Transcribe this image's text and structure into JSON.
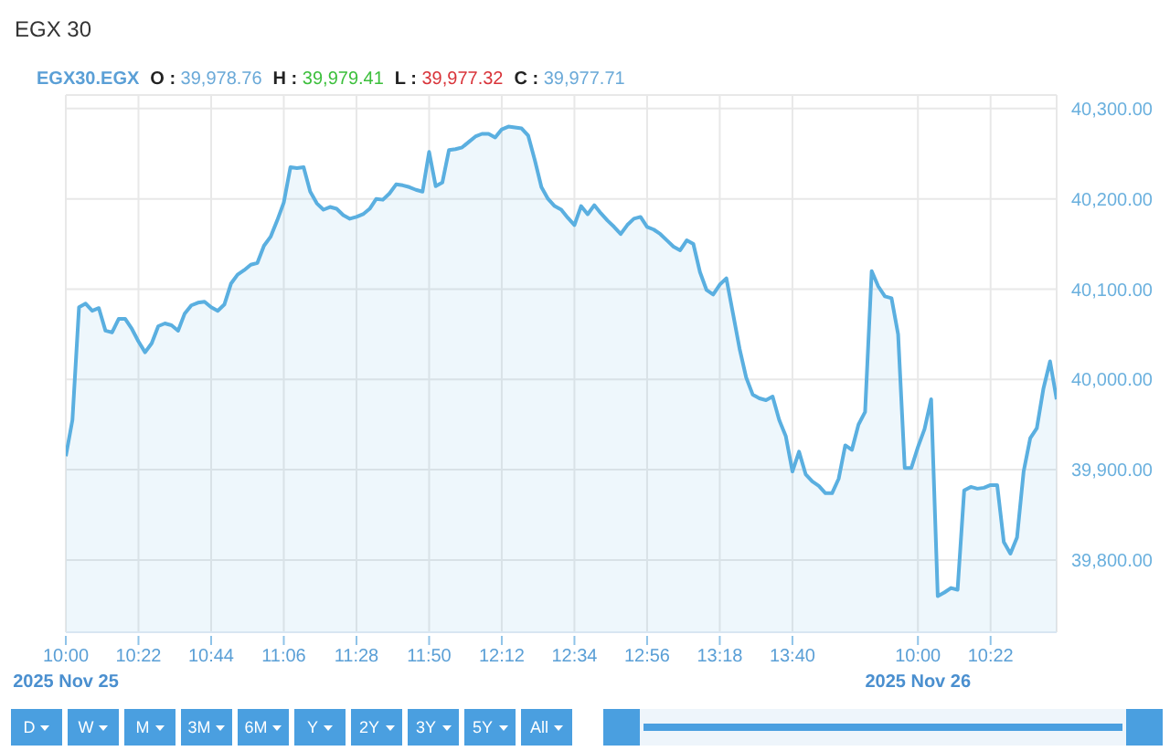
{
  "chart_data": {
    "type": "area",
    "title": "EGX 30",
    "subtitle": "EGX30.EGX",
    "annotations": [
      "O : 39,978.76",
      "H : 39,979.41",
      "L : 39,977.32",
      "C : 39,977.71",
      "D",
      "W",
      "M",
      "3M",
      "6M",
      "Y",
      "2Y",
      "3Y",
      "5Y",
      "All"
    ],
    "categories": [
      "10:00\n2025 Nov 25",
      null,
      null,
      null,
      null,
      null,
      null,
      null,
      null,
      null,
      null,
      "10:22",
      null,
      null,
      null,
      null,
      null,
      null,
      null,
      null,
      null,
      null,
      "10:44",
      null,
      null,
      null,
      null,
      null,
      null,
      null,
      null,
      null,
      null,
      "11:06",
      null,
      null,
      null,
      null,
      null,
      null,
      null,
      null,
      null,
      null,
      "11:28",
      null,
      null,
      null,
      null,
      null,
      null,
      null,
      null,
      null,
      null,
      "11:50",
      null,
      null,
      null,
      null,
      null,
      null,
      null,
      null,
      null,
      null,
      "12:12",
      null,
      null,
      null,
      null,
      null,
      null,
      null,
      null,
      null,
      null,
      "12:34",
      null,
      null,
      null,
      null,
      null,
      null,
      null,
      null,
      null,
      null,
      "12:56",
      null,
      null,
      null,
      null,
      null,
      null,
      null,
      null,
      null,
      null,
      "13:18",
      null,
      null,
      null,
      null,
      null,
      null,
      null,
      null,
      null,
      null,
      "13:40",
      null,
      null,
      null,
      null,
      null,
      null,
      null,
      null,
      null,
      null,
      null,
      null,
      null,
      null,
      null,
      null,
      null,
      null,
      "10:00\n2025 Nov 26",
      null,
      null,
      null,
      null,
      null,
      null,
      null,
      null,
      null,
      null,
      "10:22",
      null,
      null,
      null,
      null,
      null,
      null,
      null,
      null,
      null,
      null
    ],
    "series": [
      {
        "color": "#5aafe0",
        "values": [
          39915,
          39955,
          40080,
          40084,
          40076,
          40079,
          40054,
          40052,
          40067,
          40067,
          40056,
          40042,
          40030,
          40040,
          40059,
          40062,
          40060,
          40054,
          40073,
          40082,
          40085,
          40086,
          40080,
          40076,
          40083,
          40106,
          40116,
          40121,
          40127,
          40129,
          40148,
          40158,
          40176,
          40196,
          40235,
          40234,
          40235,
          40208,
          40195,
          40188,
          40191,
          40189,
          40182,
          40178,
          40180,
          40183,
          40189,
          40200,
          40199,
          40206,
          40216,
          40215,
          40213,
          40210,
          40208,
          40252,
          40214,
          40218,
          40254,
          40255,
          40257,
          40263,
          40269,
          40272,
          40272,
          40268,
          40277,
          40280,
          40279,
          40278,
          40270,
          40243,
          40213,
          40200,
          40192,
          40188,
          40179,
          40171,
          40192,
          40183,
          40193,
          40184,
          40176,
          40169,
          40161,
          40171,
          40178,
          40180,
          40169,
          40166,
          40161,
          40154,
          40147,
          40143,
          40154,
          40150,
          40119,
          40099,
          40094,
          40105,
          40112,
          40073,
          40034,
          40002,
          39983,
          39979,
          39977,
          39981,
          39955,
          39937,
          39898,
          39920,
          39895,
          39887,
          39882,
          39874,
          39874,
          39890,
          39927,
          39922,
          39950,
          39964,
          40120,
          40103,
          40092,
          40090,
          40050,
          39902,
          39902,
          39925,
          39945,
          39978,
          39760,
          39764,
          39769,
          39767,
          39877,
          39881,
          39879,
          39880,
          39883,
          39883,
          39820,
          39807,
          39825,
          39898,
          39935,
          39946,
          39990,
          40020,
          39978
        ]
      }
    ],
    "ylim": [
      39720,
      40315
    ],
    "yticks": [
      {
        "value": 39800,
        "label": "39,800.00"
      },
      {
        "value": 39900,
        "label": "39,900.00"
      },
      {
        "value": 40000,
        "label": "40,000.00"
      },
      {
        "value": 40100,
        "label": "40,100.00"
      },
      {
        "value": 40200,
        "label": "40,200.00"
      },
      {
        "value": 40300,
        "label": "40,300.00"
      }
    ],
    "grid": true
  }
}
